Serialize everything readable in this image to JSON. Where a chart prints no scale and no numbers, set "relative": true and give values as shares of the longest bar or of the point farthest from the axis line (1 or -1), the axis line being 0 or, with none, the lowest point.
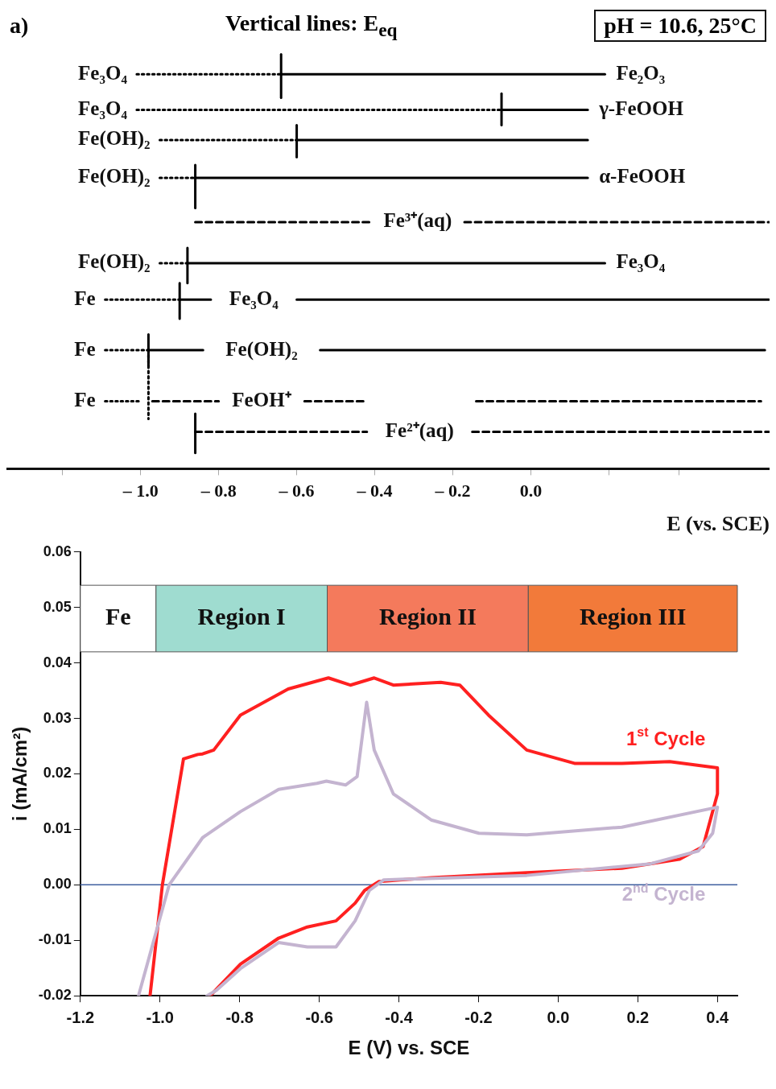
{
  "chart_data": [
    {
      "type": "line",
      "title": "Vertical lines: E$_{eq}$",
      "xlabel": "E (vs. SCE)",
      "relative": true,
      "marker": "none",
      "grid": false,
      "legend": false,
      "xlim": [
        -1.344,
        0.612
      ],
      "xticks": [
        {
          "value": -1.2,
          "label": null
        },
        {
          "value": -1.0,
          "label": "– 1.0"
        },
        {
          "value": -0.8,
          "label": "– 0.8"
        },
        {
          "value": -0.6,
          "label": "– 0.6"
        },
        {
          "value": -0.4,
          "label": "– 0.4"
        },
        {
          "value": -0.2,
          "label": "– 0.2"
        },
        {
          "value": 0,
          "label": "0.0"
        },
        {
          "value": 0.2,
          "label": null
        },
        {
          "value": 0.38,
          "label": null
        }
      ],
      "annotations": [
        "a)",
        "pH = 10.6, 25°C"
      ],
      "series": [
        {
          "name": "Fe₃O₄",
          "color": "#000000",
          "line_style": "dotted",
          "x": [
            -1.01,
            -0.64
          ],
          "values": [
            0.952,
            0.952
          ]
        },
        {
          "color": "#000000",
          "line_style": "solid",
          "x": [
            -0.64,
            -0.64
          ],
          "values": [
            0.895,
            1
          ]
        },
        {
          "name": "Fe₂O₃",
          "color": "#000000",
          "line_style": "solid",
          "x": [
            -0.64,
            0.19
          ],
          "values": [
            0.952,
            0.952
          ]
        },
        {
          "name": "Fe₃O₄",
          "color": "#000000",
          "line_style": "dotted",
          "x": [
            -1.01,
            -0.075
          ],
          "values": [
            0.866,
            0.866
          ]
        },
        {
          "color": "#000000",
          "line_style": "solid",
          "x": [
            -0.075,
            -0.075
          ],
          "values": [
            0.829,
            0.905
          ]
        },
        {
          "name": "γ-FeOOH",
          "color": "#000000",
          "line_style": "solid",
          "x": [
            -0.075,
            0.146
          ],
          "values": [
            0.866,
            0.866
          ]
        },
        {
          "name": "Fe(OH)₂",
          "color": "#000000",
          "line_style": "dotted",
          "x": [
            -0.951,
            -0.6
          ],
          "values": [
            0.793,
            0.793
          ]
        },
        {
          "color": "#000000",
          "line_style": "solid",
          "x": [
            -0.6,
            -0.6
          ],
          "values": [
            0.752,
            0.829
          ]
        },
        {
          "color": "#000000",
          "line_style": "solid",
          "x": [
            -0.6,
            0.146
          ],
          "values": [
            0.793,
            0.793
          ]
        },
        {
          "name": "Fe(OH)₂",
          "color": "#000000",
          "line_style": "dotted",
          "x": [
            -0.951,
            -0.86
          ],
          "values": [
            0.702,
            0.702
          ]
        },
        {
          "color": "#000000",
          "line_style": "solid",
          "x": [
            -0.86,
            -0.86
          ],
          "values": [
            0.629,
            0.733
          ]
        },
        {
          "name": "α-FeOOH",
          "color": "#000000",
          "line_style": "solid",
          "x": [
            -0.86,
            0.146
          ],
          "values": [
            0.702,
            0.702
          ]
        },
        {
          "name": "Fe³⁺(aq)",
          "color": "#000000",
          "line_style": "dashed",
          "x": [
            -0.86,
            -0.41,
            -0.3,
            -0.17,
            0.61
          ],
          "values": [
            0.595,
            0.595,
            null,
            0.595,
            0.595
          ]
        },
        {
          "name": "Fe(OH)₂",
          "color": "#000000",
          "line_style": "dotted",
          "x": [
            -0.951,
            -0.88
          ],
          "values": [
            0.496,
            0.496
          ]
        },
        {
          "color": "#000000",
          "line_style": "solid",
          "x": [
            -0.88,
            -0.88
          ],
          "values": [
            0.448,
            0.533
          ]
        },
        {
          "name": "Fe₃O₄",
          "color": "#000000",
          "line_style": "solid",
          "x": [
            -0.88,
            0.19
          ],
          "values": [
            0.496,
            0.496
          ]
        },
        {
          "name": "Fe",
          "color": "#000000",
          "line_style": "dotted",
          "x": [
            -1.091,
            -0.9
          ],
          "values": [
            0.408,
            0.408
          ]
        },
        {
          "color": "#000000",
          "line_style": "solid",
          "x": [
            -0.9,
            -0.9
          ],
          "values": [
            0.362,
            0.448
          ]
        },
        {
          "name": "Fe₃O₄",
          "color": "#000000",
          "line_style": "solid",
          "x": [
            -0.9,
            -0.82,
            -0.7,
            -0.6,
            0.61
          ],
          "values": [
            0.408,
            0.408,
            null,
            0.408,
            0.408
          ]
        },
        {
          "name": "Fe",
          "color": "#000000",
          "line_style": "dotted",
          "x": [
            -1.091,
            -0.98
          ],
          "values": [
            0.286,
            0.286
          ]
        },
        {
          "color": "#000000",
          "line_style": "solid",
          "x": [
            -0.98,
            -0.98
          ],
          "values": [
            0.248,
            0.324
          ]
        },
        {
          "name": "Fe(OH)₂",
          "color": "#000000",
          "line_style": "solid",
          "x": [
            -0.98,
            -0.84,
            -0.7,
            -0.54,
            0.6
          ],
          "values": [
            0.286,
            0.286,
            null,
            0.286,
            0.286
          ]
        },
        {
          "name": "Fe",
          "color": "#000000",
          "line_style": "dotted",
          "x": [
            -1.091,
            -1.0
          ],
          "values": [
            0.163,
            0.163
          ]
        },
        {
          "color": "#000000",
          "line_style": "dotted",
          "x": [
            -0.98,
            -0.98
          ],
          "values": [
            0.286,
            0.12
          ]
        },
        {
          "name": "FeOH⁺",
          "color": "#000000",
          "line_style": "dashed",
          "x": [
            -0.97,
            -0.8,
            -0.7,
            -0.58,
            -0.42,
            -0.3,
            -0.14,
            0.59
          ],
          "values": [
            0.163,
            0.163,
            null,
            0.163,
            0.163,
            null,
            0.163,
            0.163
          ]
        },
        {
          "color": "#000000",
          "line_style": "solid",
          "x": [
            -0.86,
            -0.86
          ],
          "values": [
            0.038,
            0.133
          ]
        },
        {
          "name": "Fe²⁺(aq)",
          "color": "#000000",
          "line_style": "dashed",
          "x": [
            -0.86,
            -0.42,
            -0.3,
            -0.15,
            0.61
          ],
          "values": [
            0.089,
            0.089,
            null,
            0.089,
            0.089
          ]
        }
      ]
    },
    {
      "type": "line",
      "xlabel": "E (V) vs. SCE",
      "ylabel": "i (mA/cm²)",
      "marker": "none",
      "grid": false,
      "legend": false,
      "xlim": [
        -1.2,
        0.45
      ],
      "ylim": [
        -0.02,
        0.06
      ],
      "xticks": [
        {
          "value": -1.2,
          "label": "-1.2"
        },
        {
          "value": -1.0,
          "label": "-1.0"
        },
        {
          "value": -0.8,
          "label": "-0.8"
        },
        {
          "value": -0.6,
          "label": "-0.6"
        },
        {
          "value": -0.4,
          "label": "-0.4"
        },
        {
          "value": -0.2,
          "label": "-0.2"
        },
        {
          "value": 0,
          "label": "0.0"
        },
        {
          "value": 0.2,
          "label": "0.2"
        },
        {
          "value": 0.4,
          "label": "0.4"
        }
      ],
      "yticks": [
        {
          "value": -0.02,
          "label": "-0.02"
        },
        {
          "value": -0.01,
          "label": "-0.01"
        },
        {
          "value": 0,
          "label": "0.00"
        },
        {
          "value": 0.01,
          "label": "0.01"
        },
        {
          "value": 0.02,
          "label": "0.02"
        },
        {
          "value": 0.03,
          "label": "0.03"
        },
        {
          "value": 0.04,
          "label": "0.04"
        },
        {
          "value": 0.05,
          "label": "0.05"
        },
        {
          "value": 0.06,
          "label": "0.06"
        }
      ],
      "bands": [
        {
          "axis": "x",
          "from": -1.2,
          "to": -1.01,
          "label": "Fe",
          "color": "#ffffff"
        },
        {
          "axis": "x",
          "from": -1.01,
          "to": -0.58,
          "label": "Region I",
          "color": "#9fdcd0"
        },
        {
          "axis": "x",
          "from": -0.58,
          "to": -0.075,
          "label": "Region II",
          "color": "#f47a5c"
        },
        {
          "axis": "x",
          "from": -0.075,
          "to": 0.45,
          "label": "Region III",
          "color": "#f27a3a"
        }
      ],
      "ref_lines": [
        {
          "axis": "y",
          "value": 0,
          "label": null,
          "color": "#4060a0"
        }
      ],
      "series": [
        {
          "name": "2$^{nd}$ Cycle",
          "color": "#c4b4d0",
          "x": [
            -1.054,
            -0.977,
            -0.893,
            -0.798,
            -0.702,
            -0.606,
            -0.582,
            -0.534,
            -0.505,
            -0.481,
            -0.462,
            -0.414,
            -0.319,
            -0.199,
            -0.079,
            0.16,
            0.4,
            0.388,
            0.352,
            0.232,
            -0.079,
            -0.438,
            -0.474,
            -0.51,
            -0.558,
            -0.63,
            -0.702,
            -0.798,
            -0.858,
            -0.882
          ],
          "values": [
            -0.02,
            0,
            0.0085,
            0.0132,
            0.0172,
            0.0183,
            0.0187,
            0.018,
            0.0195,
            0.0329,
            0.0243,
            0.0164,
            0.0117,
            0.0093,
            0.009,
            0.0104,
            0.014,
            0.0093,
            0.0061,
            0.0038,
            0.0017,
            0.0009,
            -0.001,
            -0.0065,
            -0.0112,
            -0.0112,
            -0.0104,
            -0.0151,
            -0.019,
            -0.02
          ]
        },
        {
          "name": "1$^{st}$ Cycle",
          "color": "#ff2020",
          "x": [
            -1.025,
            -0.994,
            -0.941,
            -0.905,
            -0.893,
            -0.865,
            -0.798,
            -0.678,
            -0.577,
            -0.522,
            -0.462,
            -0.414,
            -0.295,
            -0.247,
            -0.175,
            -0.079,
            0.041,
            0.16,
            0.28,
            0.4,
            0.4,
            0.364,
            0.304,
            0.16,
            -0.079,
            -0.319,
            -0.45,
            -0.486,
            -0.51,
            -0.558,
            -0.63,
            -0.702,
            -0.798,
            -0.874
          ],
          "values": [
            -0.02,
            0,
            0.0227,
            0.0235,
            0.0236,
            0.0243,
            0.0306,
            0.0353,
            0.0373,
            0.036,
            0.0373,
            0.036,
            0.0365,
            0.036,
            0.0306,
            0.0243,
            0.0219,
            0.0219,
            0.0222,
            0.0211,
            0.0164,
            0.0069,
            0.0046,
            0.003,
            0.0022,
            0.0013,
            0.0006,
            -0.001,
            -0.0033,
            -0.0065,
            -0.0076,
            -0.0096,
            -0.0143,
            -0.02
          ]
        }
      ]
    }
  ]
}
